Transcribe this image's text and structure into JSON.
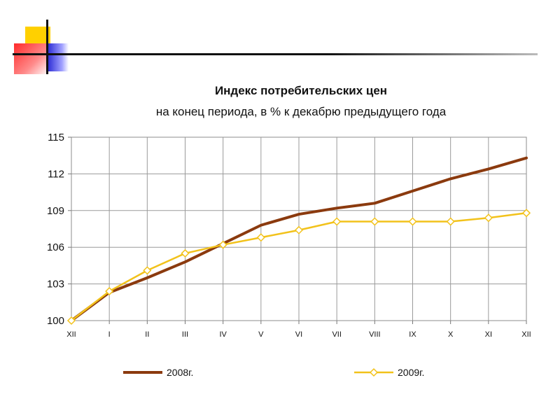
{
  "chart_data": {
    "type": "line",
    "title": "Индекс потребительских цен",
    "subtitle": "на конец периода, в % к декабрю предыдущего года",
    "categories": [
      "XII",
      "I",
      "II",
      "III",
      "IV",
      "V",
      "VI",
      "VII",
      "VIII",
      "IX",
      "X",
      "XI",
      "XII"
    ],
    "yticks": [
      "100",
      "103",
      "106",
      "109",
      "112",
      "115"
    ],
    "ylim": [
      100,
      115
    ],
    "grid": true,
    "legend_position": "bottom",
    "series": [
      {
        "name": "2008г.",
        "color": "#8b3a0e",
        "marker": "none",
        "values": [
          100.0,
          102.3,
          103.5,
          104.8,
          106.3,
          107.8,
          108.7,
          109.2,
          109.6,
          110.6,
          111.6,
          112.4,
          113.3
        ]
      },
      {
        "name": "2009г.",
        "color": "#f2c21b",
        "marker": "diamond",
        "values": [
          100.0,
          102.4,
          104.1,
          105.5,
          106.2,
          106.8,
          107.4,
          108.1,
          108.1,
          108.1,
          108.1,
          108.4,
          108.8
        ]
      }
    ]
  }
}
